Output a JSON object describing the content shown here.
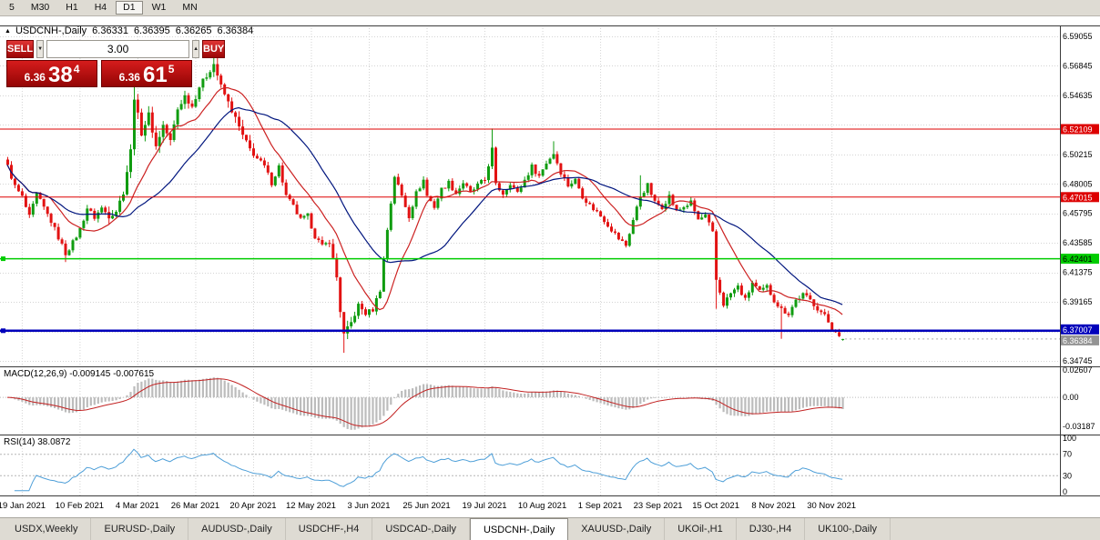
{
  "toolbar": {
    "periods": [
      {
        "label": "5",
        "active": false
      },
      {
        "label": "M30",
        "active": false
      },
      {
        "label": "H1",
        "active": false
      },
      {
        "label": "H4",
        "active": false
      },
      {
        "label": "D1",
        "active": true
      },
      {
        "label": "W1",
        "active": false
      },
      {
        "label": "MN",
        "active": false
      }
    ]
  },
  "header": {
    "collapse_icon": "▲",
    "symbol": "USDCNH-,Daily",
    "open": "6.36331",
    "high": "6.36395",
    "low": "6.36265",
    "close": "6.36384"
  },
  "trade_panel": {
    "sell_label": "SELL",
    "buy_label": "BUY",
    "volume": "3.00",
    "down_icon": "▼",
    "up_icon": "▲",
    "sell_price_small": "6.36",
    "sell_price_big": "38",
    "sell_price_sup": "4",
    "buy_price_small": "6.36",
    "buy_price_big": "61",
    "buy_price_sup": "5"
  },
  "indicators": {
    "macd_label": "MACD(12,26,9) -0.009145 -0.007615",
    "rsi_label": "RSI(14) 38.0872"
  },
  "tabs": [
    {
      "label": "USDX,Weekly",
      "active": false
    },
    {
      "label": "EURUSD-,Daily",
      "active": false
    },
    {
      "label": "AUDUSD-,Daily",
      "active": false
    },
    {
      "label": "USDCHF-,H4",
      "active": false
    },
    {
      "label": "USDCAD-,Daily",
      "active": false
    },
    {
      "label": "USDCNH-,Daily",
      "active": true
    },
    {
      "label": "XAUUSD-,Daily",
      "active": false
    },
    {
      "label": "UKOil-,H1",
      "active": false
    },
    {
      "label": "DJ30-,H4",
      "active": false
    },
    {
      "label": "UK100-,Daily",
      "active": false
    }
  ],
  "chart_data": {
    "type": "candlestick",
    "symbol": "USDCNH-",
    "timeframe": "Daily",
    "total_days": 232,
    "colors": {
      "up": "#109c10",
      "down": "#e21212",
      "grid": "#d4d4d4"
    },
    "y_ticks": [
      {
        "value": 6.59055,
        "label": "6.59055"
      },
      {
        "value": 6.56845,
        "label": "6.56845"
      },
      {
        "value": 6.54635,
        "label": "6.54635"
      },
      {
        "value": 6.52425,
        "label": ""
      },
      {
        "value": 6.50215,
        "label": "6.50215"
      },
      {
        "value": 6.48005,
        "label": "6.48005"
      },
      {
        "value": 6.45795,
        "label": "6.45795"
      },
      {
        "value": 6.43585,
        "label": "6.43585"
      },
      {
        "value": 6.41375,
        "label": "6.41375"
      },
      {
        "value": 6.39165,
        "label": "6.39165"
      },
      {
        "value": 6.36955,
        "label": ""
      },
      {
        "value": 6.34745,
        "label": "6.34745"
      }
    ],
    "x_ticks": [
      {
        "day": 4,
        "label": "19 Jan 2021"
      },
      {
        "day": 20,
        "label": "10 Feb 2021"
      },
      {
        "day": 36,
        "label": "4 Mar 2021"
      },
      {
        "day": 52,
        "label": "26 Mar 2021"
      },
      {
        "day": 68,
        "label": "20 Apr 2021"
      },
      {
        "day": 84,
        "label": "12 May 2021"
      },
      {
        "day": 100,
        "label": "3 Jun 2021"
      },
      {
        "day": 116,
        "label": "25 Jun 2021"
      },
      {
        "day": 132,
        "label": "19 Jul 2021"
      },
      {
        "day": 148,
        "label": "10 Aug 2021"
      },
      {
        "day": 164,
        "label": "1 Sep 2021"
      },
      {
        "day": 180,
        "label": "23 Sep 2021"
      },
      {
        "day": 196,
        "label": "15 Oct 2021"
      },
      {
        "day": 212,
        "label": "8 Nov 2021"
      },
      {
        "day": 228,
        "label": "30 Nov 2021"
      }
    ],
    "price_waypoints": [
      [
        0,
        6.493
      ],
      [
        2,
        6.478
      ],
      [
        4,
        6.47
      ],
      [
        6,
        6.455
      ],
      [
        8,
        6.472
      ],
      [
        10,
        6.462
      ],
      [
        12,
        6.452
      ],
      [
        14,
        6.44
      ],
      [
        16,
        6.428
      ],
      [
        18,
        6.436
      ],
      [
        20,
        6.446
      ],
      [
        22,
        6.462
      ],
      [
        24,
        6.455
      ],
      [
        26,
        6.462
      ],
      [
        28,
        6.456
      ],
      [
        30,
        6.46
      ],
      [
        32,
        6.474
      ],
      [
        34,
        6.505
      ],
      [
        35,
        6.545
      ],
      [
        37,
        6.518
      ],
      [
        39,
        6.532
      ],
      [
        41,
        6.508
      ],
      [
        43,
        6.524
      ],
      [
        45,
        6.512
      ],
      [
        47,
        6.536
      ],
      [
        49,
        6.546
      ],
      [
        51,
        6.538
      ],
      [
        53,
        6.553
      ],
      [
        55,
        6.561
      ],
      [
        57,
        6.57
      ],
      [
        59,
        6.553
      ],
      [
        61,
        6.541
      ],
      [
        63,
        6.529
      ],
      [
        65,
        6.516
      ],
      [
        67,
        6.506
      ],
      [
        69,
        6.499
      ],
      [
        71,
        6.493
      ],
      [
        73,
        6.481
      ],
      [
        75,
        6.493
      ],
      [
        77,
        6.471
      ],
      [
        79,
        6.463
      ],
      [
        81,
        6.453
      ],
      [
        83,
        6.456
      ],
      [
        85,
        6.441
      ],
      [
        87,
        6.433
      ],
      [
        89,
        6.437
      ],
      [
        91,
        6.41
      ],
      [
        92,
        6.385
      ],
      [
        93,
        6.367
      ],
      [
        95,
        6.376
      ],
      [
        97,
        6.389
      ],
      [
        99,
        6.383
      ],
      [
        101,
        6.386
      ],
      [
        103,
        6.401
      ],
      [
        105,
        6.446
      ],
      [
        107,
        6.486
      ],
      [
        109,
        6.471
      ],
      [
        111,
        6.456
      ],
      [
        113,
        6.473
      ],
      [
        115,
        6.483
      ],
      [
        116,
        6.471
      ],
      [
        118,
        6.463
      ],
      [
        120,
        6.476
      ],
      [
        122,
        6.481
      ],
      [
        124,
        6.473
      ],
      [
        126,
        6.481
      ],
      [
        128,
        6.473
      ],
      [
        130,
        6.479
      ],
      [
        132,
        6.483
      ],
      [
        134,
        6.506
      ],
      [
        135,
        6.479
      ],
      [
        137,
        6.473
      ],
      [
        139,
        6.481
      ],
      [
        141,
        6.473
      ],
      [
        143,
        6.483
      ],
      [
        145,
        6.493
      ],
      [
        147,
        6.486
      ],
      [
        149,
        6.496
      ],
      [
        151,
        6.503
      ],
      [
        153,
        6.489
      ],
      [
        155,
        6.479
      ],
      [
        157,
        6.483
      ],
      [
        159,
        6.471
      ],
      [
        161,
        6.464
      ],
      [
        163,
        6.459
      ],
      [
        165,
        6.453
      ],
      [
        167,
        6.446
      ],
      [
        169,
        6.439
      ],
      [
        171,
        6.434
      ],
      [
        173,
        6.453
      ],
      [
        175,
        6.471
      ],
      [
        177,
        6.479
      ],
      [
        179,
        6.466
      ],
      [
        181,
        6.463
      ],
      [
        183,
        6.471
      ],
      [
        185,
        6.459
      ],
      [
        187,
        6.463
      ],
      [
        189,
        6.466
      ],
      [
        191,
        6.453
      ],
      [
        193,
        6.456
      ],
      [
        195,
        6.443
      ],
      [
        196,
        6.408
      ],
      [
        198,
        6.39
      ],
      [
        200,
        6.398
      ],
      [
        202,
        6.403
      ],
      [
        204,
        6.393
      ],
      [
        206,
        6.406
      ],
      [
        208,
        6.399
      ],
      [
        210,
        6.403
      ],
      [
        212,
        6.393
      ],
      [
        214,
        6.386
      ],
      [
        216,
        6.383
      ],
      [
        218,
        6.393
      ],
      [
        220,
        6.397
      ],
      [
        222,
        6.393
      ],
      [
        224,
        6.387
      ],
      [
        226,
        6.381
      ],
      [
        228,
        6.372
      ],
      [
        230,
        6.366
      ],
      [
        231,
        6.3638
      ]
    ],
    "spikes": {
      "16": {
        "low": 6.4215
      },
      "35": {
        "high": 6.563
      },
      "57": {
        "high": 6.582
      },
      "93": {
        "low": 6.3535
      },
      "134": {
        "high": 6.5215
      },
      "151": {
        "high": 6.512
      },
      "175": {
        "high": 6.4865
      },
      "196": {
        "low": 6.3865
      },
      "214": {
        "low": 6.364
      }
    },
    "last_candle": {
      "open": 6.36331,
      "high": 6.36395,
      "low": 6.36265,
      "close": 6.36384
    },
    "levels": [
      {
        "price": 6.52109,
        "label": "6.52109",
        "color": "#dd0000",
        "text": "#ffffff",
        "width": 1,
        "handle": false,
        "dy": -5.5
      },
      {
        "price": 6.47015,
        "label": "6.47015",
        "color": "#dd0000",
        "text": "#ffffff",
        "width": 1,
        "handle": false,
        "dy": -5.5
      },
      {
        "price": 6.42401,
        "label": "6.42401",
        "color": "#00cc00",
        "text": "#000000",
        "width": 1.5,
        "handle": true,
        "dy": -5.5
      },
      {
        "price": 6.37007,
        "label": "6.37007",
        "color": "#0000bb",
        "text": "#ffffff",
        "width": 2.5,
        "handle": true,
        "dy": -7
      }
    ],
    "current_price": {
      "value": 6.36384,
      "label": "6.36384",
      "color": "#949494"
    },
    "moving_averages": [
      {
        "period": 13,
        "color": "#cc2222"
      },
      {
        "period": 30,
        "color": "#00157e"
      }
    ],
    "macd": {
      "params": "12,26,9",
      "values": [
        -0.009145,
        -0.007615
      ],
      "range": [
        -0.03187,
        0.02607
      ],
      "hist_color": "#bcbcbc",
      "signal_color": "#c22222",
      "axis": [
        {
          "v": 0.02607,
          "label": "0.02607"
        },
        {
          "v": 0,
          "label": "0.00"
        },
        {
          "v": -0.03187,
          "label": "-0.03187"
        }
      ]
    },
    "rsi": {
      "period": 14,
      "value": 38.0872,
      "line_color": "#4e9fd8",
      "levels": [
        70,
        30
      ],
      "range": [
        0,
        100
      ],
      "axis": [
        {
          "v": 100,
          "label": "100"
        },
        {
          "v": 70,
          "label": "70"
        },
        {
          "v": 30,
          "label": "30"
        },
        {
          "v": 0,
          "label": "0"
        }
      ]
    }
  }
}
